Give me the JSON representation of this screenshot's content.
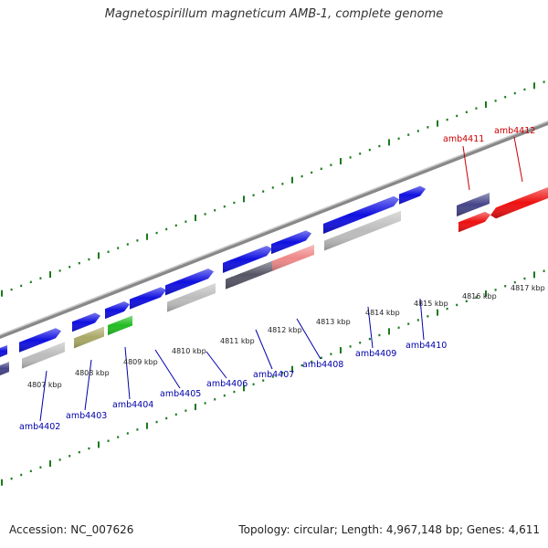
{
  "title": "Magnetospirillum magneticum AMB-1, complete genome",
  "footer": {
    "accession": "Accession: NC_007626",
    "summary": "Topology: circular; Length: 4,967,148 bp; Genes: 4,611"
  },
  "colors": {
    "backbone": "#888888",
    "tick": "#1a7a1a",
    "label_blue": "#0000aa",
    "label_red": "#cc0000",
    "gene_blue": "#1010e0",
    "gene_red": "#ee1010",
    "gene_gray": "#bcbcbc",
    "gene_dark": "#555566",
    "gene_pink": "#ee8888",
    "gene_olive": "#aaa866",
    "gene_green": "#22bb22",
    "gene_navy": "#444488"
  },
  "scale_labels": [
    "4807 kbp",
    "4808 kbp",
    "4809 kbp",
    "4810 kbp",
    "4811 kbp",
    "4812 kbp",
    "4813 kbp",
    "4814 kbp",
    "4815 kbp",
    "4816 kbp",
    "4817 kbp"
  ],
  "gene_labels": [
    {
      "text": "amb4402",
      "color": "blue"
    },
    {
      "text": "amb4403",
      "color": "blue"
    },
    {
      "text": "amb4404",
      "color": "blue"
    },
    {
      "text": "amb4405",
      "color": "blue"
    },
    {
      "text": "amb4406",
      "color": "blue"
    },
    {
      "text": "amb4407",
      "color": "blue"
    },
    {
      "text": "amb4408",
      "color": "blue"
    },
    {
      "text": "amb4409",
      "color": "blue"
    },
    {
      "text": "amb4410",
      "color": "blue"
    },
    {
      "text": "amb4411",
      "color": "red"
    },
    {
      "text": "amb4412",
      "color": "red"
    }
  ]
}
